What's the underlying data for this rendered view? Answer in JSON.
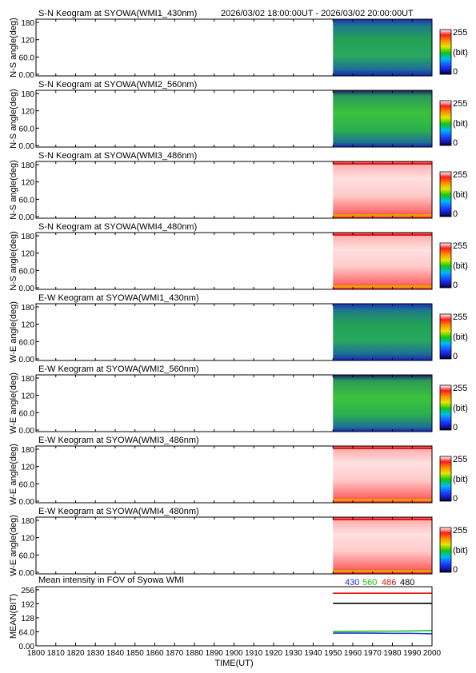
{
  "header": {
    "time_range": "2026/03/02 18:00:00UT - 2026/03/02 20:00:00UT"
  },
  "colorbar": {
    "min_label": "0",
    "max_label": "255",
    "unit": "(bit)"
  },
  "chart_data": [
    {
      "type": "heatmap",
      "title": "S-N Keogram at SYOWA(WMI1_430nm)",
      "ylabel": "N-S angle(deg)",
      "yticks": [
        "0.00",
        "60.0",
        "120",
        "180"
      ],
      "ylim": [
        0,
        180
      ],
      "xlim": [
        1800,
        2000
      ],
      "data_start": 1950,
      "data_end": 2000,
      "colormap": "rainbow",
      "dominant_color": "green-blue"
    },
    {
      "type": "heatmap",
      "title": "S-N Keogram at SYOWA(WMI2_560nm)",
      "ylabel": "N-S angle(deg)",
      "yticks": [
        "0.00",
        "60.0",
        "120",
        "180"
      ],
      "ylim": [
        0,
        180
      ],
      "xlim": [
        1800,
        2000
      ],
      "data_start": 1950,
      "data_end": 2000,
      "colormap": "rainbow",
      "dominant_color": "green"
    },
    {
      "type": "heatmap",
      "title": "S-N Keogram at SYOWA(WMI3_486nm)",
      "ylabel": "N-S angle(deg)",
      "yticks": [
        "0.00",
        "60.0",
        "120",
        "180"
      ],
      "ylim": [
        0,
        180
      ],
      "xlim": [
        1800,
        2000
      ],
      "data_start": 1950,
      "data_end": 2000,
      "colormap": "rainbow",
      "dominant_color": "saturated-red"
    },
    {
      "type": "heatmap",
      "title": "S-N Keogram at SYOWA(WMI4_480nm)",
      "ylabel": "N-S angle(deg)",
      "yticks": [
        "0.00",
        "60.0",
        "120",
        "180"
      ],
      "ylim": [
        0,
        180
      ],
      "xlim": [
        1800,
        2000
      ],
      "data_start": 1950,
      "data_end": 2000,
      "colormap": "rainbow",
      "dominant_color": "saturated-red"
    },
    {
      "type": "heatmap",
      "title": "E-W Keogram at SYOWA(WMI1_430nm)",
      "ylabel": "W-E angle(deg)",
      "yticks": [
        "0.00",
        "60.0",
        "120",
        "180"
      ],
      "ylim": [
        0,
        180
      ],
      "xlim": [
        1800,
        2000
      ],
      "data_start": 1950,
      "data_end": 2000,
      "colormap": "rainbow",
      "dominant_color": "green-blue"
    },
    {
      "type": "heatmap",
      "title": "E-W Keogram at SYOWA(WMI2_560nm)",
      "ylabel": "W-E angle(deg)",
      "yticks": [
        "0.00",
        "60.0",
        "120",
        "180"
      ],
      "ylim": [
        0,
        180
      ],
      "xlim": [
        1800,
        2000
      ],
      "data_start": 1950,
      "data_end": 2000,
      "colormap": "rainbow",
      "dominant_color": "green"
    },
    {
      "type": "heatmap",
      "title": "E-W Keogram at SYOWA(WMI3_486nm)",
      "ylabel": "W-E angle(deg)",
      "yticks": [
        "0.00",
        "60.0",
        "120",
        "180"
      ],
      "ylim": [
        0,
        180
      ],
      "xlim": [
        1800,
        2000
      ],
      "data_start": 1950,
      "data_end": 2000,
      "colormap": "rainbow",
      "dominant_color": "saturated-red"
    },
    {
      "type": "heatmap",
      "title": "E-W Keogram at SYOWA(WMI4_480nm)",
      "ylabel": "W-E angle(deg)",
      "yticks": [
        "0.00",
        "60.0",
        "120",
        "180"
      ],
      "ylim": [
        0,
        180
      ],
      "xlim": [
        1800,
        2000
      ],
      "data_start": 1950,
      "data_end": 2000,
      "colormap": "rainbow",
      "dominant_color": "saturated-red"
    },
    {
      "type": "line",
      "title": "Mean intensity in FOV of Syowa WMI",
      "ylabel": "MEAN(BIT)",
      "xlabel": "TIME(UT)",
      "xticks": [
        "1800",
        "1810",
        "1820",
        "1830",
        "1840",
        "1850",
        "1860",
        "1870",
        "1880",
        "1890",
        "1900",
        "1910",
        "1920",
        "1930",
        "1940",
        "1950",
        "1960",
        "1970",
        "1980",
        "1990",
        "2000"
      ],
      "yticks": [
        "0.00",
        "64.0",
        "128",
        "192",
        "256"
      ],
      "ylim": [
        0,
        270
      ],
      "xlim": [
        1800,
        2000
      ],
      "series": [
        {
          "name": "430",
          "color": "#1a2fd6",
          "x": [
            1950,
            1960,
            1970,
            1980,
            1990,
            2000
          ],
          "y": [
            58,
            58,
            58,
            57,
            57,
            55
          ]
        },
        {
          "name": "560",
          "color": "#18c418",
          "x": [
            1950,
            1960,
            1970,
            1980,
            1990,
            2000
          ],
          "y": [
            65,
            66,
            67,
            67,
            68,
            70
          ]
        },
        {
          "name": "486",
          "color": "#e01010",
          "x": [
            1950,
            1960,
            1970,
            1980,
            1990,
            2000
          ],
          "y": [
            240,
            240,
            240,
            240,
            240,
            240
          ]
        },
        {
          "name": "480",
          "color": "#000000",
          "x": [
            1950,
            1960,
            1970,
            1980,
            1990,
            2000
          ],
          "y": [
            194,
            194,
            194,
            194,
            194,
            194
          ]
        }
      ]
    }
  ]
}
